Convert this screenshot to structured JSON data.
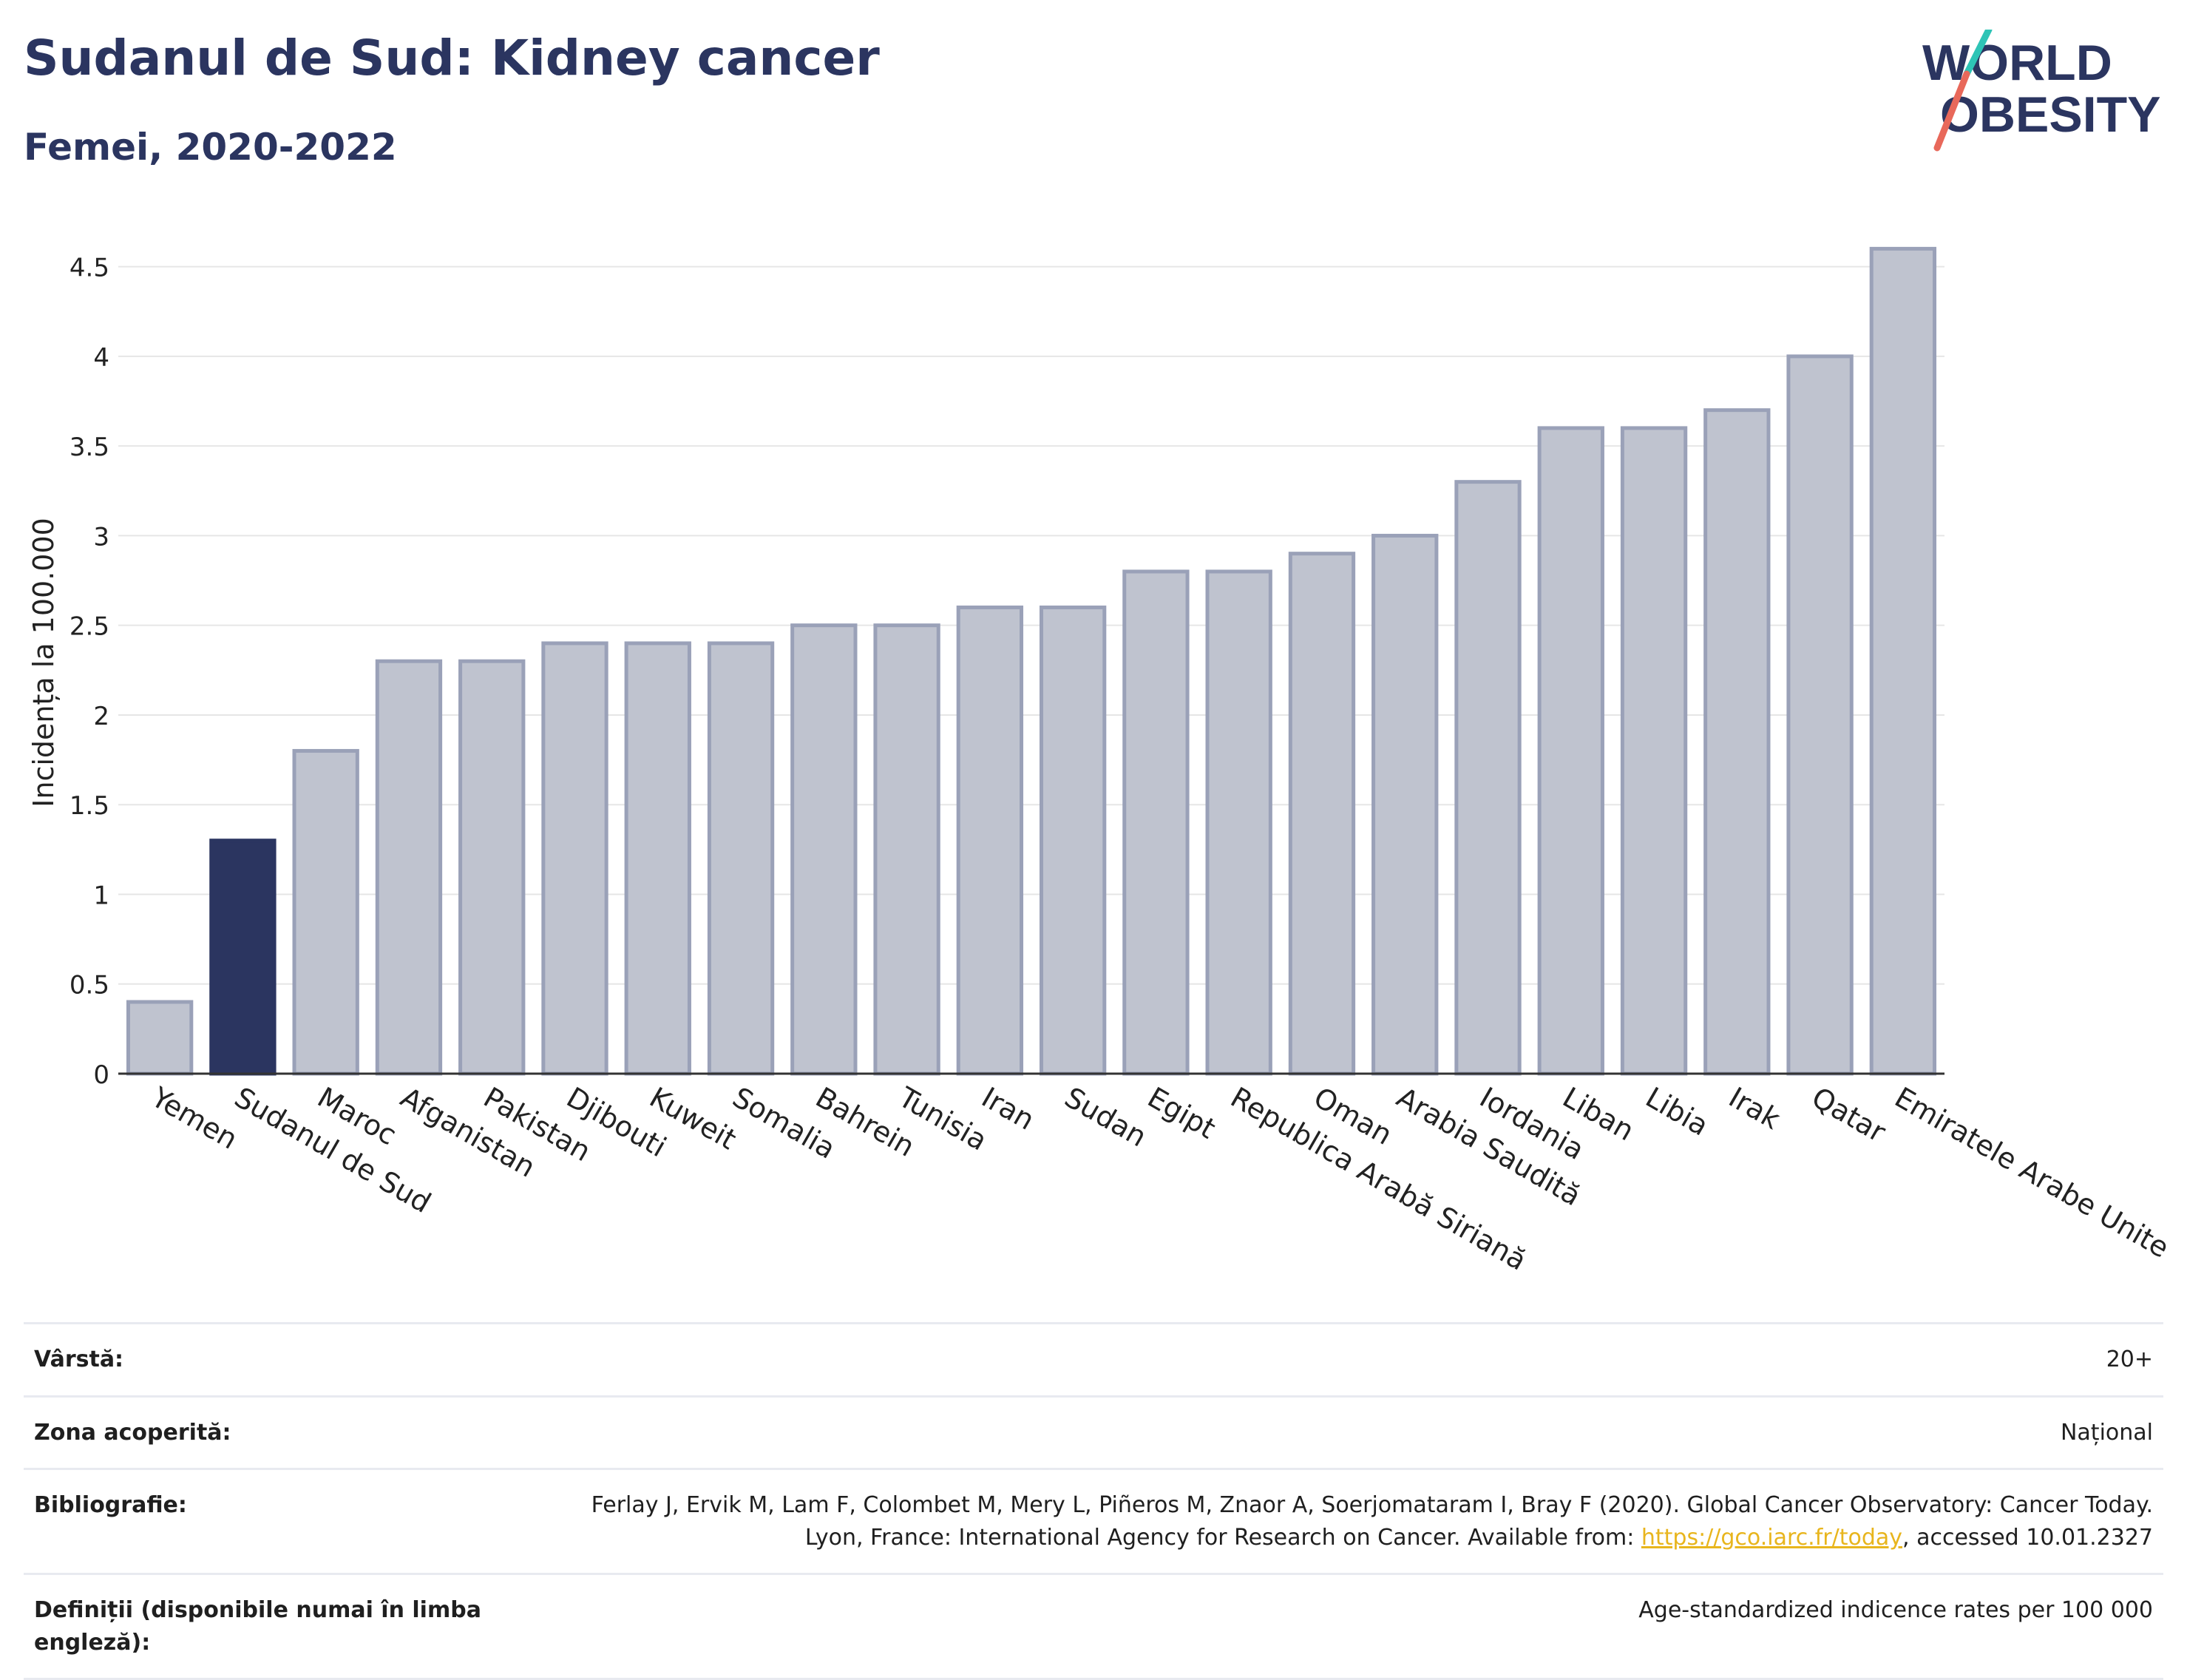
{
  "header": {
    "title": "Sudanul de Sud: Kidney cancer",
    "subtitle": "Femei, 2020-2022"
  },
  "logo": {
    "line1": "WORLD",
    "line2": "OBESITY",
    "colors": {
      "text": "#2b3560",
      "slash_top": "#2ec4b6",
      "slash_bottom": "#e8685a"
    }
  },
  "chart_data": {
    "type": "bar",
    "title": "Sudanul de Sud: Kidney cancer",
    "subtitle": "Femei, 2020-2022",
    "ylabel": "Incidența la 100.000",
    "xlabel": "",
    "ylim": [
      0,
      4.75
    ],
    "yticks": [
      0,
      0.5,
      1,
      1.5,
      2,
      2.5,
      3,
      3.5,
      4,
      4.5
    ],
    "ytick_labels": [
      "0",
      "0.5",
      "1",
      "1.5",
      "2",
      "2.5",
      "3",
      "3.5",
      "4",
      "4.5"
    ],
    "grid": true,
    "highlight": "Sudanul de Sud",
    "colors": {
      "bar": "#bfc3cf",
      "bar_edge": "#9aa1b8",
      "highlight": "#2b3560",
      "grid": "#e6e6e6",
      "axis": "#333333"
    },
    "categories": [
      "Yemen",
      "Sudanul de Sud",
      "Maroc",
      "Afganistan",
      "Pakistan",
      "Djibouti",
      "Kuweit",
      "Somalia",
      "Bahrein",
      "Tunisia",
      "Iran",
      "Sudan",
      "Egipt",
      "Republica Arabă Siriană",
      "Oman",
      "Arabia Saudită",
      "Iordania",
      "Liban",
      "Libia",
      "Irak",
      "Qatar",
      "Emiratele Arabe Unite"
    ],
    "values": [
      0.4,
      1.3,
      1.8,
      2.3,
      2.3,
      2.4,
      2.4,
      2.4,
      2.5,
      2.5,
      2.6,
      2.6,
      2.8,
      2.8,
      2.9,
      3.0,
      3.3,
      3.6,
      3.6,
      3.7,
      4.0,
      4.6
    ]
  },
  "meta": {
    "rows": [
      {
        "key": "Vârstă:",
        "value": "20+"
      },
      {
        "key": "Zona acoperită:",
        "value": "Național"
      },
      {
        "key": "Bibliografie:",
        "value_pre": "Ferlay J, Ervik M, Lam F, Colombet M, Mery L, Piñeros M, Znaor A, Soerjomataram I, Bray F (2020). Global Cancer Observatory: Cancer Today. Lyon, France: International Agency for Research on Cancer. Available from: ",
        "link": "https://gco.iarc.fr/today",
        "value_post": ", accessed 10.01.2327"
      },
      {
        "key": "Definiții (disponibile numai în limba engleză):",
        "value": "Age-standardized indicence rates per 100 000"
      }
    ]
  }
}
